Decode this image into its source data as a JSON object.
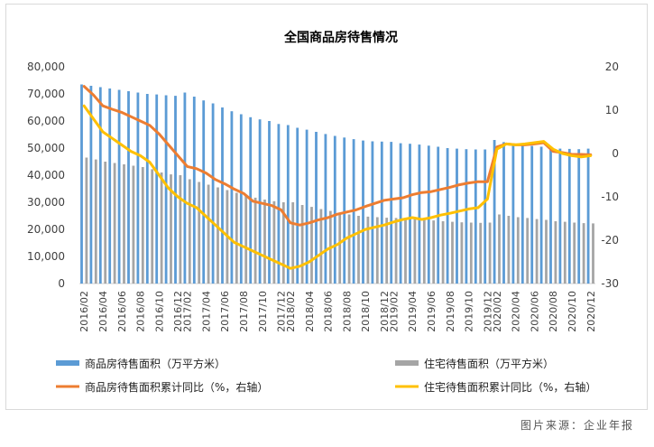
{
  "chart_data": {
    "type": "bar",
    "title": "全国商品房待售情况",
    "source": "图片来源：企业年报",
    "categories": [
      "2016/02",
      "2016/03",
      "2016/04",
      "2016/05",
      "2016/06",
      "2016/07",
      "2016/08",
      "2016/09",
      "2016/10",
      "2016/11",
      "2016/12",
      "2017/02",
      "2017/03",
      "2017/04",
      "2017/05",
      "2017/06",
      "2017/07",
      "2017/08",
      "2017/09",
      "2017/10",
      "2017/11",
      "2017/12",
      "2018/02",
      "2018/03",
      "2018/04",
      "2018/05",
      "2018/06",
      "2018/07",
      "2018/08",
      "2018/09",
      "2018/10",
      "2018/11",
      "2018/12",
      "2019/02",
      "2019/03",
      "2019/04",
      "2019/05",
      "2019/06",
      "2019/07",
      "2019/08",
      "2019/09",
      "2019/10",
      "2019/11",
      "2019/12",
      "2020/02",
      "2020/03",
      "2020/04",
      "2020/05",
      "2020/06",
      "2020/07",
      "2020/08",
      "2020/09",
      "2020/10",
      "2020/11",
      "2020/12"
    ],
    "tick_labels": [
      "2016/02",
      "2016/04",
      "2016/06",
      "2016/08",
      "2016/10",
      "2016/12",
      "2017/02",
      "2017/04",
      "2017/06",
      "2017/08",
      "2017/10",
      "2017/12",
      "2018/02",
      "2018/04",
      "2018/06",
      "2018/08",
      "2018/10",
      "2018/12",
      "2019/02",
      "2019/04",
      "2019/06",
      "2019/08",
      "2019/10",
      "2019/12",
      "2020/02",
      "2020/04",
      "2020/06",
      "2020/08",
      "2020/10",
      "2020/12"
    ],
    "y_left": {
      "ylim": [
        0,
        80000
      ],
      "ticks": [
        "0",
        "10,000",
        "20,000",
        "30,000",
        "40,000",
        "50,000",
        "60,000",
        "70,000",
        "80,000"
      ]
    },
    "y_right": {
      "ylim": [
        -30,
        20
      ],
      "ticks": [
        "-30",
        "-20",
        "-10",
        "0",
        "10",
        "20"
      ]
    },
    "grid": false,
    "legend_position": "bottom",
    "series": [
      {
        "name": "商品房待售面积（万平方米）",
        "kind": "bar",
        "axis": "left",
        "color": "#5b9bd5",
        "values": [
          73500,
          73000,
          72500,
          72000,
          71500,
          71000,
          70500,
          70000,
          69800,
          69500,
          69300,
          70500,
          69000,
          67600,
          66500,
          65000,
          63600,
          62500,
          61400,
          60600,
          60000,
          58900,
          58500,
          57500,
          56800,
          56000,
          55200,
          54500,
          53900,
          53300,
          52800,
          52500,
          52400,
          52300,
          51800,
          51600,
          51300,
          50900,
          50500,
          50000,
          49800,
          49600,
          49500,
          49500,
          53000,
          52200,
          51500,
          51000,
          50800,
          50500,
          50000,
          49800,
          49700,
          49600,
          49800
        ]
      },
      {
        "name": "住宅待售面积（万平方米）",
        "kind": "bar",
        "axis": "left",
        "color": "#a5a5a5",
        "values": [
          46500,
          45800,
          45000,
          44500,
          44000,
          43500,
          43000,
          42200,
          41000,
          40300,
          40000,
          38500,
          37500,
          36500,
          35500,
          34500,
          33500,
          32500,
          31700,
          31000,
          30400,
          30000,
          30000,
          29000,
          28300,
          27500,
          26800,
          26000,
          25500,
          25000,
          24700,
          24500,
          24300,
          24200,
          24000,
          23800,
          23600,
          23300,
          23000,
          22800,
          22600,
          22500,
          22400,
          22500,
          25500,
          25000,
          24500,
          24200,
          23800,
          23500,
          23000,
          22800,
          22500,
          22300,
          22200
        ]
      },
      {
        "name": "商品房待售面积累计同比（%，右轴）",
        "kind": "line",
        "axis": "right",
        "color": "#ed7d31",
        "values": [
          15.5,
          13.5,
          11,
          10.2,
          9.5,
          8.5,
          7.5,
          6.5,
          4.5,
          2,
          -0.5,
          -3,
          -3.5,
          -4.5,
          -6,
          -7,
          -8.2,
          -9.2,
          -11,
          -11.5,
          -12,
          -13,
          -16,
          -16.5,
          -16,
          -15.3,
          -14.8,
          -14,
          -13.5,
          -13,
          -12.2,
          -11.5,
          -10.8,
          -10.5,
          -10.2,
          -9.5,
          -9,
          -8.8,
          -8.3,
          -7.8,
          -7.2,
          -6.8,
          -6.5,
          -6.5,
          1.5,
          2.2,
          2.0,
          2.0,
          2.2,
          2.5,
          0.5,
          0.2,
          -0.2,
          -0.2,
          -0.3
        ]
      },
      {
        "name": "住宅待售面积累计同比（%，右轴）",
        "kind": "line",
        "axis": "right",
        "color": "#ffc000",
        "values": [
          11,
          8,
          5,
          3.5,
          2,
          0.5,
          -0.5,
          -2,
          -5,
          -8,
          -10,
          -11.5,
          -12.5,
          -14.5,
          -16.5,
          -18.5,
          -20.5,
          -21.5,
          -22.5,
          -23.5,
          -24.5,
          -25.5,
          -26.5,
          -26,
          -25,
          -23.5,
          -22,
          -21,
          -19.5,
          -18.5,
          -17.5,
          -17,
          -16.5,
          -15.8,
          -15.2,
          -14.8,
          -15.2,
          -14.8,
          -14.2,
          -13.8,
          -13.3,
          -12.8,
          -12.5,
          -10.5,
          1.0,
          2.2,
          2.0,
          2.2,
          2.5,
          2.8,
          1.0,
          0.0,
          -0.5,
          -0.8,
          -0.5
        ]
      }
    ]
  }
}
